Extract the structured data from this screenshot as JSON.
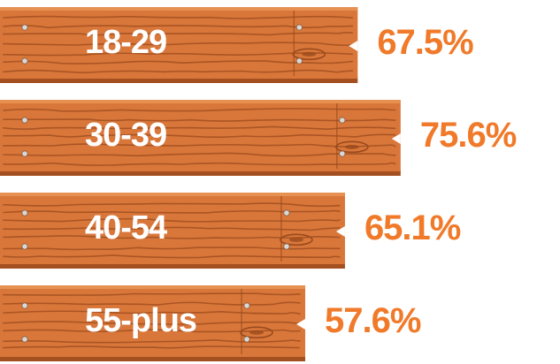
{
  "chart_data": {
    "type": "bar",
    "orientation": "horizontal",
    "categories": [
      "18-29",
      "30-39",
      "40-54",
      "55-plus"
    ],
    "values": [
      67.5,
      75.6,
      65.1,
      57.6
    ],
    "value_labels": [
      "67.5%",
      "75.6%",
      "65.1%",
      "57.6%"
    ],
    "unit": "%",
    "title": "",
    "xlabel": "",
    "ylabel": "",
    "xlim": [
      0,
      100
    ],
    "grid": false,
    "legend": "none"
  },
  "colors": {
    "plank": "#d9773a",
    "plank_dark": "#a44f1f",
    "grain": "#9a4a1d",
    "value_text": "#f07a2a",
    "label_text": "#ffffff",
    "nail": "#d8d8d8"
  }
}
